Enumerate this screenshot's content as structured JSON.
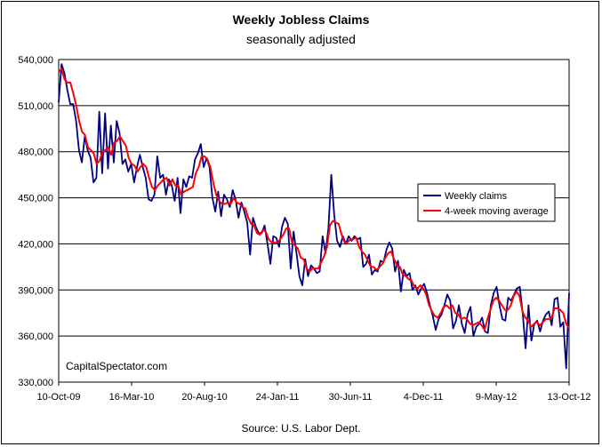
{
  "chart_data": {
    "type": "line",
    "title": "Weekly Jobless Claims",
    "subtitle": "seasonally adjusted",
    "source": "Source: U.S. Labor Dept.",
    "watermark": "CapitalSpectator.com",
    "xlabel": "",
    "ylabel": "",
    "ylim": [
      330000,
      540000
    ],
    "y_ticks": [
      "330,000",
      "360,000",
      "390,000",
      "420,000",
      "450,000",
      "480,000",
      "510,000",
      "540,000"
    ],
    "x_ticks": [
      "10-Oct-09",
      "16-Mar-10",
      "20-Aug-10",
      "24-Jan-11",
      "30-Jun-11",
      "4-Dec-11",
      "9-May-12",
      "13-Oct-12"
    ],
    "grid": "horizontal",
    "legend_position": "right",
    "x_start": "2009-10-10",
    "x_end": "2012-10-13",
    "series": [
      {
        "name": "Weekly claims",
        "color": "#000080",
        "values": [
          512000,
          537000,
          531000,
          520000,
          511000,
          511000,
          500000,
          481000,
          473000,
          490000,
          481000,
          476000,
          460000,
          463000,
          506000,
          466000,
          505000,
          469000,
          497000,
          473000,
          500000,
          492000,
          472000,
          475000,
          467000,
          472000,
          460000,
          470000,
          478000,
          470000,
          463000,
          449000,
          448000,
          452000,
          477000,
          463000,
          465000,
          452000,
          462000,
          458000,
          448000,
          463000,
          440000,
          462000,
          457000,
          464000,
          463000,
          475000,
          479000,
          485000,
          470000,
          476000,
          470000,
          450000,
          441000,
          454000,
          438000,
          452000,
          449000,
          444000,
          455000,
          449000,
          437000,
          447000,
          441000,
          434000,
          413000,
          437000,
          431000,
          427000,
          427000,
          432000,
          420000,
          407000,
          425000,
          424000,
          418000,
          431000,
          437000,
          433000,
          404000,
          428000,
          414000,
          399000,
          393000,
          410000,
          399000,
          406000,
          404000,
          401000,
          402000,
          425000,
          414000,
          430000,
          465000,
          439000,
          422000,
          418000,
          425000,
          420000,
          425000,
          422000,
          425000,
          423000,
          424000,
          405000,
          407000,
          413000,
          400000,
          403000,
          402000,
          409000,
          408000,
          416000,
          421000,
          417000,
          402000,
          409000,
          389000,
          403000,
          399000,
          401000,
          390000,
          393000,
          387000,
          391000,
          394000,
          388000,
          380000,
          373000,
          364000,
          371000,
          374000,
          380000,
          387000,
          383000,
          365000,
          370000,
          380000,
          368000,
          362000,
          374000,
          379000,
          360000,
          366000,
          368000,
          372000,
          363000,
          362000,
          380000,
          388000,
          392000,
          380000,
          371000,
          370000,
          385000,
          383000,
          387000,
          391000,
          392000,
          375000,
          352000,
          380000,
          357000,
          368000,
          370000,
          363000,
          370000,
          374000,
          376000,
          367000,
          384000,
          385000,
          366000,
          369000,
          339000,
          388000
        ]
      },
      {
        "name": "4-week moving average",
        "color": "#ff0000",
        "values": [
          532000,
          534000,
          527000,
          525000,
          525000,
          518000,
          510000,
          500000,
          493000,
          491000,
          483000,
          481000,
          479000,
          472000,
          474000,
          480000,
          481000,
          483000,
          478000,
          486000,
          487000,
          490000,
          487000,
          484000,
          476000,
          472000,
          471000,
          467000,
          470000,
          472000,
          470000,
          463000,
          457000,
          455000,
          458000,
          460000,
          462000,
          463000,
          458000,
          462000,
          458000,
          458000,
          452000,
          454000,
          455000,
          456000,
          457000,
          466000,
          470000,
          477000,
          477000,
          475000,
          470000,
          460000,
          452000,
          448000,
          446000,
          446000,
          447000,
          446000,
          450000,
          447000,
          446000,
          444000,
          443000,
          437000,
          433000,
          432000,
          427000,
          426000,
          429000,
          428000,
          423000,
          421000,
          421000,
          421000,
          423000,
          426000,
          430000,
          430000,
          421000,
          419000,
          417000,
          411000,
          410000,
          404000,
          402000,
          404000,
          404000,
          404000,
          408000,
          412000,
          418000,
          432000,
          435000,
          434000,
          433000,
          426000,
          421000,
          421000,
          423000,
          423000,
          424000,
          418000,
          415000,
          413000,
          409000,
          405000,
          405000,
          403000,
          405000,
          407000,
          411000,
          414000,
          415000,
          410000,
          406000,
          405000,
          400000,
          399000,
          397000,
          396000,
          392000,
          391000,
          393000,
          391000,
          387000,
          380000,
          376000,
          373000,
          372000,
          375000,
          379000,
          380000,
          378000,
          380000,
          375000,
          374000,
          371000,
          372000,
          371000,
          368000,
          367000,
          368000,
          369000,
          367000,
          364000,
          371000,
          377000,
          383000,
          385000,
          383000,
          380000,
          377000,
          377000,
          380000,
          386000,
          389000,
          386000,
          376000,
          372000,
          370000,
          366000,
          368000,
          369000,
          367000,
          369000,
          371000,
          371000,
          372000,
          378000,
          378000,
          377000,
          375000,
          368000,
          365000
        ]
      }
    ]
  }
}
